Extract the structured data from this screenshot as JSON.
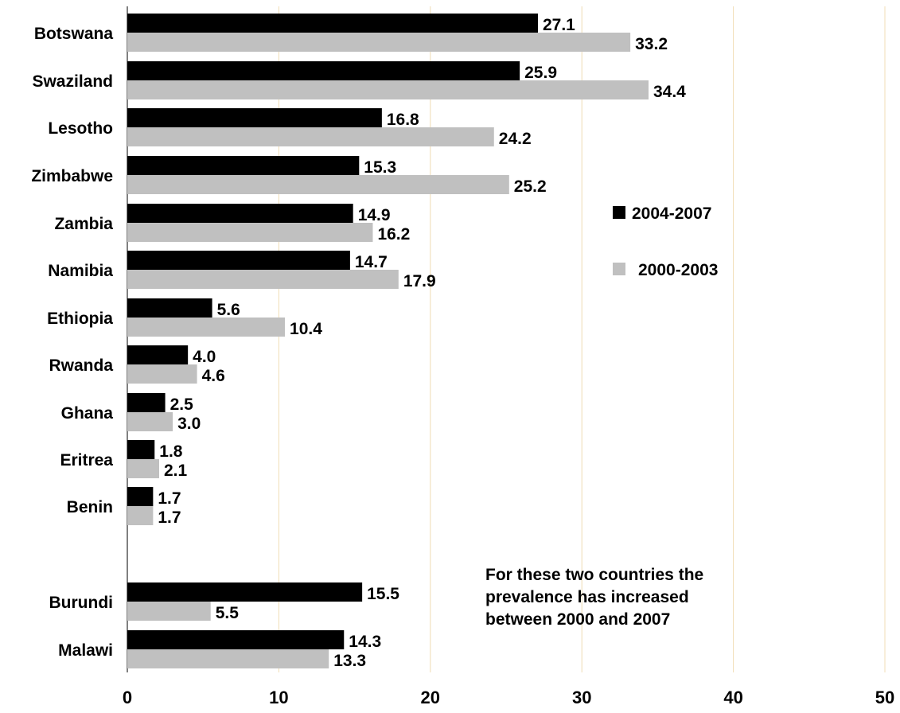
{
  "chart_data": {
    "type": "bar",
    "orientation": "horizontal",
    "categories": [
      "Botswana",
      "Swaziland",
      "Lesotho",
      "Zimbabwe",
      "Zambia",
      "Namibia",
      "Ethiopia",
      "Rwanda",
      "Ghana",
      "Eritrea",
      "Benin",
      "Burundi",
      "Malawi"
    ],
    "series": [
      {
        "name": "2004-2007",
        "color": "#000000",
        "values": [
          27.1,
          25.9,
          16.8,
          15.3,
          14.9,
          14.7,
          5.6,
          4.0,
          2.5,
          1.8,
          1.7,
          15.5,
          14.3
        ],
        "labels": [
          "27.1",
          "25.9",
          "16.8",
          "15.3",
          "14.9",
          "14.7",
          "5.6",
          "4.0",
          "2.5",
          "1.8",
          "1.7",
          "15.5",
          "14.3"
        ]
      },
      {
        "name": "2000-2003",
        "color": "#c0c0c0",
        "values": [
          33.2,
          34.4,
          24.2,
          25.2,
          16.2,
          17.9,
          10.4,
          4.6,
          3.0,
          2.1,
          1.7,
          5.5,
          13.3
        ],
        "labels": [
          "33.2",
          "34.4",
          "24.2",
          "25.2",
          "16.2",
          "17.9",
          "10.4",
          "4.6",
          "3.0",
          "2.1",
          "1.7",
          "5.5",
          "13.3"
        ]
      }
    ],
    "xlim": [
      0,
      50
    ],
    "xticks": [
      "0",
      "10",
      "20",
      "30",
      "40",
      "50"
    ],
    "grid": "vertical",
    "gridColor": "#f0dcb4",
    "legend": "right",
    "title": "",
    "xlabel": "",
    "ylabel": "",
    "annotation": [
      "For these two countries the",
      "prevalence has increased",
      "between 2000 and 2007"
    ]
  }
}
